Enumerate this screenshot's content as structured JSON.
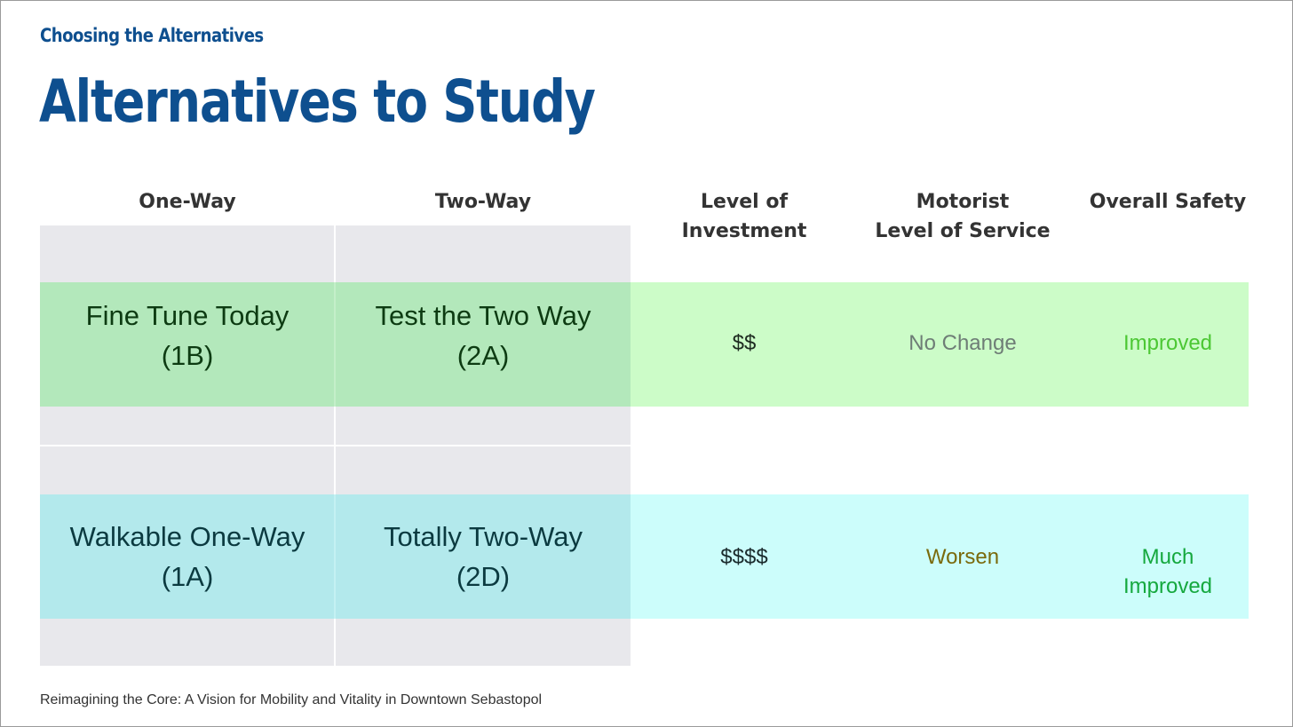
{
  "eyebrow": "Choosing the Alternatives",
  "title": "Alternatives to Study",
  "columns": {
    "one_way": "One-Way",
    "two_way": "Two-Way",
    "investment": [
      "Level of",
      "Investment"
    ],
    "motorist": [
      "Motorist",
      "Level of Service"
    ],
    "safety": "Overall Safety"
  },
  "rows": [
    {
      "one_way": [
        "Fine Tune Today",
        "(1B)"
      ],
      "two_way": [
        "Test the Two Way",
        "(2A)"
      ],
      "investment": "$$",
      "motorist": "No Change",
      "safety": [
        "Improved"
      ],
      "colors": {
        "band": "#ccfcc8",
        "cell": "#b3e8bb",
        "alt_text": "#0d3b12",
        "motorist": "#6e7d76",
        "safety": "#4cc734"
      }
    },
    {
      "one_way": [
        "Walkable One-Way",
        "(1A)"
      ],
      "two_way": [
        "Totally Two-Way",
        "(2D)"
      ],
      "investment": "$$$$",
      "motorist": "Worsen",
      "safety": [
        "Much",
        "Improved"
      ],
      "colors": {
        "band": "#ccfdfb",
        "cell": "#b3e9ec",
        "alt_text": "#0b3a40",
        "motorist": "#7a6a0c",
        "safety": "#15a83e"
      }
    }
  ],
  "footer": "Reimagining the Core: A Vision for Mobility and Vitality in Downtown Sebastopol",
  "colors": {
    "brand": "#0e4f8f",
    "header_text": "#333333",
    "grid_gray": "#e8e8ec"
  }
}
